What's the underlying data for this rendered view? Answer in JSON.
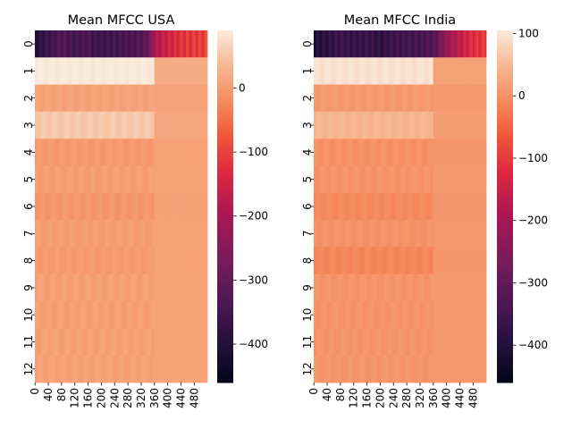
{
  "chart_data": [
    {
      "type": "heatmap",
      "title": "Mean MFCC USA",
      "rows": [
        "0",
        "1",
        "2",
        "3",
        "4",
        "5",
        "6",
        "7",
        "8",
        "9",
        "10",
        "11",
        "12"
      ],
      "n_cols": 520,
      "x_tick_labels": [
        "0",
        "40",
        "80",
        "120",
        "160",
        "200",
        "240",
        "280",
        "320",
        "360",
        "400",
        "440",
        "480"
      ],
      "x_tick_values": [
        0,
        40,
        80,
        120,
        160,
        200,
        240,
        280,
        320,
        360,
        400,
        440,
        480
      ],
      "colorbar": {
        "min": -460,
        "max": 90,
        "ticks": [
          0,
          -100,
          -200,
          -300,
          -400
        ],
        "tick_labels": [
          "0",
          "−100",
          "−200",
          "−300",
          "−400"
        ]
      },
      "row_means": [
        -330,
        85,
        8,
        50,
        -2,
        4,
        -5,
        3,
        0,
        6,
        5,
        6,
        7
      ],
      "row0_profile": {
        "x": [
          0,
          40,
          80,
          120,
          160,
          200,
          240,
          280,
          320,
          340,
          360,
          400,
          440,
          480,
          520
        ],
        "values": [
          -400,
          -360,
          -330,
          -350,
          -340,
          -360,
          -350,
          -340,
          -330,
          -300,
          -200,
          -150,
          -120,
          -110,
          -100
        ]
      }
    },
    {
      "type": "heatmap",
      "title": "Mean MFCC India",
      "rows": [
        "0",
        "1",
        "2",
        "3",
        "4",
        "5",
        "6",
        "7",
        "8",
        "9",
        "10",
        "11",
        "12"
      ],
      "n_cols": 520,
      "x_tick_labels": [
        "0",
        "40",
        "80",
        "120",
        "160",
        "200",
        "240",
        "280",
        "320",
        "360",
        "400",
        "440",
        "480"
      ],
      "x_tick_values": [
        0,
        40,
        80,
        120,
        160,
        200,
        240,
        280,
        320,
        360,
        400,
        440,
        480
      ],
      "colorbar": {
        "min": -460,
        "max": 105,
        "ticks": [
          100,
          0,
          -100,
          -200,
          -300,
          -400
        ],
        "tick_labels": [
          "100",
          "0",
          "−100",
          "−200",
          "−300",
          "−400"
        ]
      },
      "row_means": [
        -320,
        90,
        10,
        45,
        0,
        3,
        -8,
        2,
        -12,
        4,
        3,
        4,
        5
      ],
      "row0_profile": {
        "x": [
          0,
          40,
          80,
          120,
          160,
          200,
          240,
          280,
          320,
          360,
          380,
          400,
          440,
          480,
          520
        ],
        "values": [
          -410,
          -380,
          -360,
          -370,
          -360,
          -380,
          -360,
          -350,
          -340,
          -320,
          -280,
          -220,
          -160,
          -120,
          -100
        ]
      }
    }
  ]
}
